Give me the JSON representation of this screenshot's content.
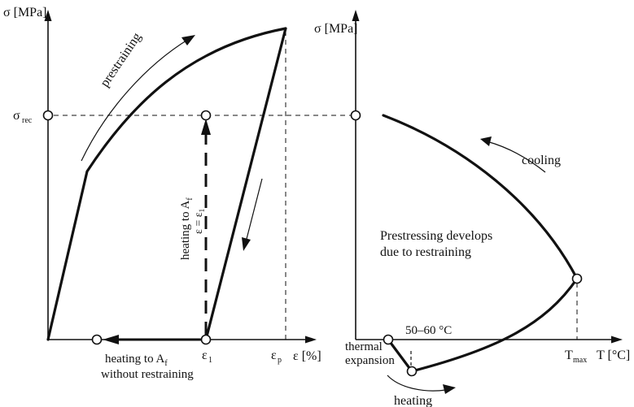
{
  "left_panel": {
    "y_axis_label": "σ [MPa]",
    "x_axis_label": "ε [%]",
    "sigma_rec_label_main": "σ",
    "sigma_rec_label_sub": "rec",
    "eps1_label_main": "ε",
    "eps1_label_sub": "1",
    "epsp_label_main": "ε",
    "epsp_label_sub": "p",
    "prestraining_label": "prestraining",
    "heating_af_label": "heating to A",
    "heating_af_sub": "f",
    "eps_eq_label": "ε = ε",
    "eps_eq_sub": "1",
    "free_heating_line1": "heating to A",
    "free_heating_sub": "f",
    "free_heating_line2": "without restraining"
  },
  "right_panel": {
    "y_axis_label": "σ [MPa]",
    "x_axis_label": "T [°C]",
    "tmax_label_main": "T",
    "tmax_label_sub": "max",
    "cooling_label": "cooling",
    "prestress_line1": "Prestressing develops",
    "prestress_line2": "due to restraining",
    "temp_range_label": "50–60  °C",
    "thermal_line1": "thermal",
    "thermal_line2": "expansion",
    "heating_label": "heating"
  }
}
